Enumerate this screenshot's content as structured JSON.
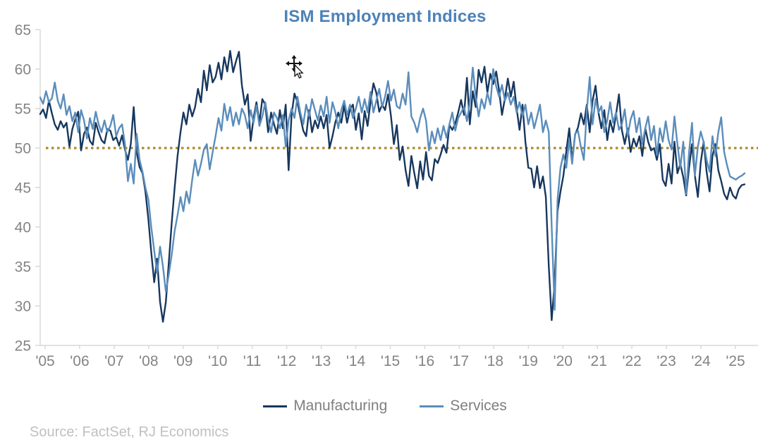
{
  "title": "ISM Employment Indices",
  "source_note": "Source: FactSet, RJ Economics",
  "legend": [
    {
      "label": "Manufacturing",
      "color": "#17375E"
    },
    {
      "label": "Services",
      "color": "#5B8DBB"
    }
  ],
  "colors": {
    "title": "#4D82B8",
    "axis_labels": "#848484",
    "axis_line": "#D9D9D9",
    "legend_text": "#7F7F7F",
    "source_text": "#C0C0C0",
    "reference_line": "#A98A2E",
    "manufacturing": "#17375E",
    "services": "#5B8DBB"
  },
  "chart_data": {
    "type": "line",
    "title": "ISM Employment Indices",
    "frequency": "monthly",
    "x_start_year": 2005,
    "x_tick_labels": [
      "'05",
      "'06",
      "'07",
      "'08",
      "'09",
      "'10",
      "'11",
      "'12",
      "'13",
      "'14",
      "'15",
      "'16",
      "'17",
      "'18",
      "'19",
      "'20",
      "'21",
      "'22",
      "'23",
      "'24",
      "'25"
    ],
    "ylim": [
      25,
      65
    ],
    "yticks": [
      25,
      30,
      35,
      40,
      45,
      50,
      55,
      60,
      65
    ],
    "grid": false,
    "legend_position": "bottom",
    "reference_line": {
      "value": 50,
      "style": "dotted",
      "color": "#A98A2E"
    },
    "series": [
      {
        "name": "Manufacturing",
        "color": "#17375E",
        "values": [
          54.3,
          54.9,
          53.8,
          56.0,
          54.4,
          53.0,
          52.3,
          53.4,
          52.6,
          53.2,
          50.2,
          52.4,
          53.6,
          54.6,
          49.7,
          51.8,
          52.6,
          50.9,
          50.4,
          53.2,
          52.0,
          51.0,
          50.6,
          52.4,
          52.2,
          51.0,
          51.4,
          50.3,
          51.6,
          49.8,
          48.5,
          50.5,
          55.2,
          49.5,
          47.6,
          46.8,
          44.5,
          41.0,
          36.8,
          33.0,
          36.0,
          30.5,
          28.0,
          30.5,
          35.5,
          40.5,
          45.0,
          49.0,
          52.0,
          54.5,
          53.0,
          55.5,
          54.0,
          55.2,
          57.5,
          55.8,
          59.8,
          57.3,
          60.5,
          58.3,
          59.0,
          60.8,
          58.7,
          61.5,
          59.7,
          62.3,
          59.6,
          61.0,
          62.2,
          58.0,
          55.5,
          56.8,
          50.9,
          53.8,
          55.8,
          53.2,
          56.2,
          55.5,
          52.0,
          54.5,
          53.0,
          51.8,
          54.8,
          52.5,
          55.5,
          47.2,
          54.2,
          56.9,
          55.8,
          54.0,
          52.2,
          51.5,
          54.8,
          52.0,
          53.5,
          52.5,
          54.0,
          52.5,
          54.2,
          50.0,
          51.5,
          53.3,
          54.5,
          53.2,
          55.4,
          53.2,
          54.9,
          55.5,
          52.3,
          54.4,
          51.1,
          54.7,
          52.8,
          55.8,
          58.2,
          57.0,
          54.6,
          55.5,
          54.8,
          56.8,
          54.1,
          50.5,
          52.9,
          48.5,
          50.2,
          47.2,
          45.2,
          49.0,
          46.8,
          44.9,
          48.3,
          46.0,
          49.5,
          46.5,
          45.9,
          48.6,
          48.1,
          49.2,
          50.4,
          49.4,
          52.9,
          52.3,
          53.1,
          54.5,
          56.1,
          54.2,
          58.9,
          53.0,
          57.2,
          55.2,
          59.9,
          58.3,
          60.3,
          57.0,
          59.4,
          58.1,
          59.7,
          57.3,
          54.2,
          56.3,
          58.8,
          56.5,
          58.4,
          55.0,
          52.3,
          55.5,
          50.8,
          47.5,
          47.4,
          45.0,
          47.7,
          44.9,
          46.4,
          43.8,
          35.0,
          28.2,
          33.0,
          42.0,
          44.5,
          46.5,
          49.6,
          52.5,
          48.4,
          51.7,
          52.6,
          54.4,
          53.0,
          55.5,
          52.0,
          56.0,
          57.9,
          54.5,
          52.5,
          54.8,
          51.0,
          53.5,
          52.0,
          54.2,
          56.8,
          52.3,
          50.5,
          52.5,
          49.5,
          51.2,
          50.2,
          51.5,
          49.0,
          52.5,
          50.8,
          49.7,
          50.0,
          48.5,
          50.5,
          46.0,
          45.2,
          48.0,
          45.5,
          50.8,
          46.8,
          48.0,
          46.3,
          44.0,
          47.5,
          50.5,
          46.5,
          43.8,
          48.2,
          50.8,
          47.0,
          44.5,
          49.0,
          50.5,
          47.2,
          45.8,
          44.2,
          43.5,
          45.0,
          44.0,
          43.6,
          44.8,
          45.3,
          45.4
        ]
      },
      {
        "name": "Services",
        "color": "#5B8DBB",
        "values": [
          56.4,
          55.6,
          57.2,
          55.8,
          56.3,
          58.3,
          56.0,
          55.0,
          56.8,
          54.2,
          55.3,
          53.4,
          54.5,
          52.0,
          54.8,
          53.5,
          51.2,
          53.8,
          52.4,
          54.6,
          53.0,
          52.0,
          53.5,
          52.0,
          52.8,
          54.2,
          51.5,
          52.5,
          53.0,
          50.5,
          45.8,
          48.0,
          45.5,
          51.8,
          48.5,
          47.0,
          45.0,
          43.5,
          40.0,
          37.0,
          34.2,
          37.5,
          35.0,
          31.8,
          34.0,
          36.5,
          39.5,
          41.5,
          43.8,
          42.0,
          44.5,
          43.0,
          46.0,
          48.5,
          46.5,
          48.0,
          49.8,
          50.5,
          47.3,
          49.5,
          51.5,
          53.8,
          52.2,
          55.6,
          53.5,
          55.2,
          52.8,
          54.5,
          53.0,
          55.0,
          54.2,
          52.5,
          54.8,
          53.2,
          55.4,
          52.8,
          54.0,
          55.8,
          53.5,
          52.0,
          54.5,
          53.8,
          52.5,
          54.2,
          50.2,
          53.5,
          55.0,
          53.8,
          56.5,
          54.5,
          53.0,
          55.5,
          54.0,
          56.2,
          54.8,
          53.5,
          55.4,
          54.0,
          56.5,
          53.2,
          55.8,
          54.5,
          52.5,
          54.8,
          56.0,
          54.2,
          55.5,
          53.8,
          55.0,
          56.5,
          54.5,
          56.2,
          54.5,
          57.1,
          54.5,
          56.0,
          57.5,
          55.2,
          56.5,
          58.5,
          56.0,
          57.4,
          55.3,
          55.0,
          56.9,
          55.5,
          59.6,
          54.0,
          53.2,
          52.0,
          53.8,
          55.0,
          53.5,
          49.7,
          52.1,
          50.6,
          52.5,
          51.0,
          52.8,
          51.3,
          53.0,
          54.5,
          52.2,
          53.8,
          54.5,
          55.2,
          53.4,
          55.8,
          60.2,
          56.5,
          54.0,
          56.2,
          55.0,
          57.0,
          55.5,
          60.0,
          57.8,
          56.5,
          58.0,
          56.0,
          57.0,
          55.5,
          56.5,
          54.5,
          55.8,
          54.0,
          55.5,
          53.0,
          54.5,
          52.5,
          54.0,
          55.5,
          52.0,
          53.5,
          52.0,
          40.0,
          29.5,
          43.5,
          47.5,
          49.2,
          47.5,
          51.0,
          48.0,
          51.8,
          52.2,
          50.1,
          48.5,
          54.7,
          59.0,
          53.0,
          56.2,
          54.5,
          55.3,
          52.0,
          53.5,
          55.8,
          53.2,
          54.5,
          52.3,
          53.0,
          54.9,
          51.5,
          53.6,
          54.7,
          52.0,
          53.8,
          50.5,
          52.5,
          54.0,
          51.0,
          52.8,
          49.1,
          52.5,
          50.8,
          53.4,
          51.0,
          49.8,
          54.0,
          50.5,
          47.5,
          50.8,
          44.2,
          49.5,
          53.2,
          46.5,
          50.2,
          52.1,
          50.7,
          48.5,
          47.0,
          51.5,
          49.0,
          52.0,
          53.9,
          49.5,
          47.8,
          46.4,
          46.2,
          46.0,
          46.3,
          46.5,
          46.8
        ]
      }
    ]
  }
}
